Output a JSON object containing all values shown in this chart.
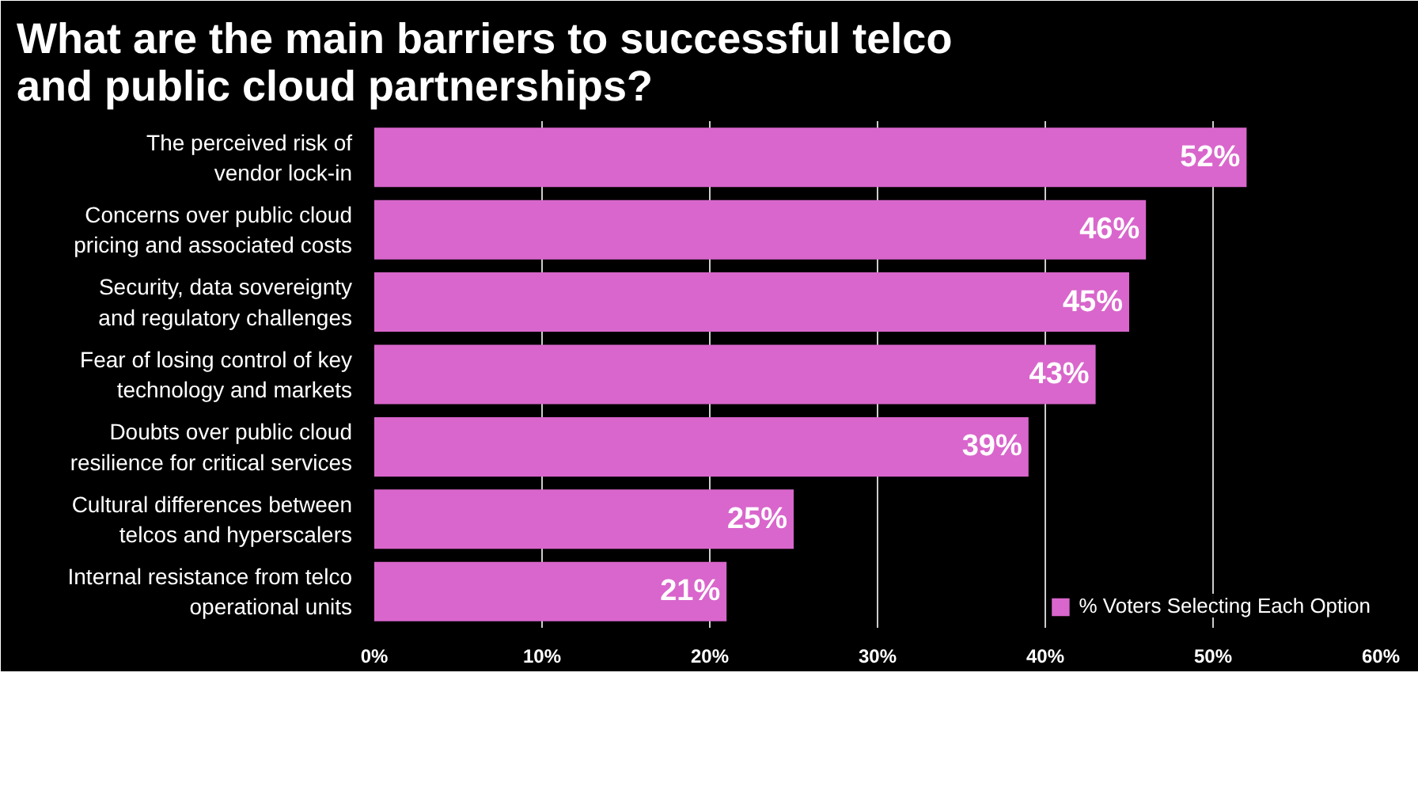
{
  "chart_data": {
    "type": "bar",
    "orientation": "horizontal",
    "title": "What are the main barriers to successful telco and public cloud partnerships?",
    "categories": [
      "The perceived risk of\nvendor lock-in",
      "Concerns over public cloud\npricing and associated costs",
      "Security, data sovereignty\nand regulatory challenges",
      "Fear of losing control of key\ntechnology and markets",
      "Doubts over public cloud\nresilience for critical services",
      "Cultural differences between\ntelcos and hyperscalers",
      "Internal resistance from telco\noperational units"
    ],
    "series": [
      {
        "name": "% Voters Selecting Each Option",
        "color": "#d966cc",
        "values": [
          52,
          46,
          45,
          43,
          39,
          25,
          21
        ],
        "value_labels": [
          "52%",
          "46%",
          "45%",
          "43%",
          "39%",
          "25%",
          "21%"
        ]
      }
    ],
    "xlim": [
      0,
      60
    ],
    "xticks": [
      {
        "value": 0,
        "label": "0%"
      },
      {
        "value": 10,
        "label": "10%"
      },
      {
        "value": 20,
        "label": "20%"
      },
      {
        "value": 30,
        "label": "30%"
      },
      {
        "value": 40,
        "label": "40%"
      },
      {
        "value": 50,
        "label": "50%"
      },
      {
        "value": 60,
        "label": "60%"
      }
    ],
    "grid": "x",
    "legend": "bottom"
  }
}
